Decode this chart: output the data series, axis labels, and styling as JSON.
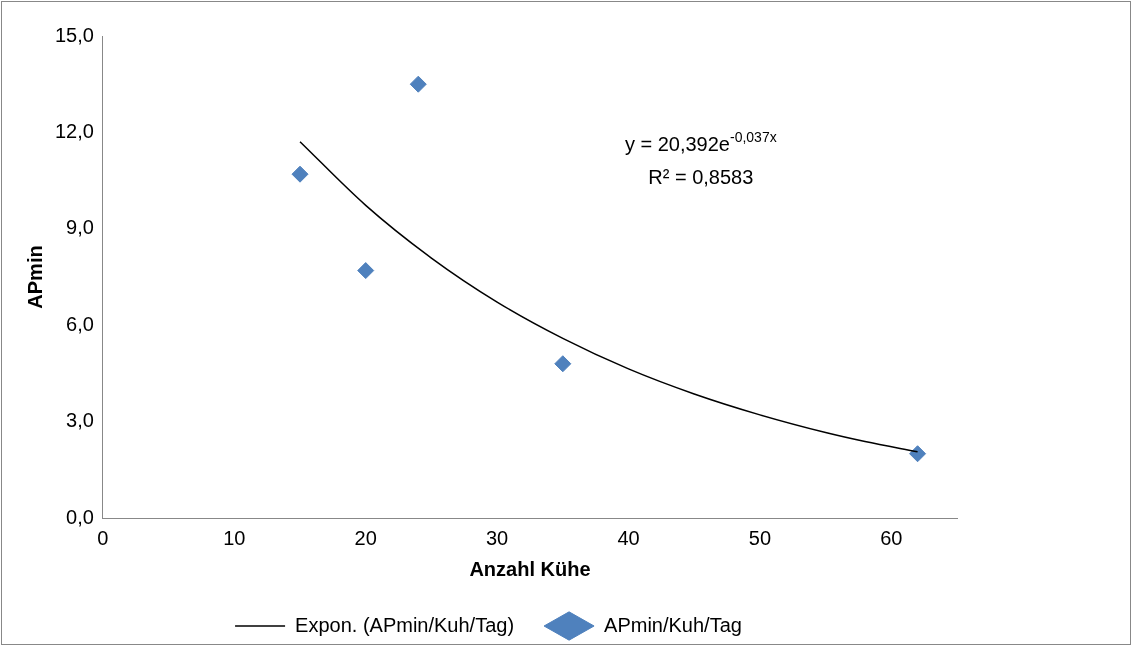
{
  "chart_data": {
    "type": "scatter",
    "xlabel": "Anzahl Kühe",
    "ylabel": "APmin",
    "xlim": [
      0,
      65
    ],
    "xticks": [
      0,
      10,
      20,
      30,
      40,
      50,
      60
    ],
    "ylim": [
      0,
      15
    ],
    "yticks": [
      {
        "value": 0,
        "label": "0,0"
      },
      {
        "value": 3,
        "label": "3,0"
      },
      {
        "value": 6,
        "label": "6,0"
      },
      {
        "value": 9,
        "label": "9,0"
      },
      {
        "value": 12,
        "label": "12,0"
      },
      {
        "value": 15,
        "label": "15,0"
      }
    ],
    "legend": "bottom",
    "series": [
      {
        "name": "APmin/Kuh/Tag",
        "color": "#4f81bd",
        "marker": "diamond",
        "x": [
          15,
          20,
          24,
          35,
          62
        ],
        "values": [
          10.7,
          7.7,
          13.5,
          4.8,
          2.0
        ]
      },
      {
        "type": "line",
        "name": "Expon. (APmin/Kuh/Tag)",
        "color": "#000000",
        "marker": "none",
        "x": [
          15,
          20,
          25,
          30,
          35,
          40,
          45,
          50,
          55,
          58,
          62
        ],
        "values": [
          11.71,
          9.73,
          8.09,
          6.72,
          5.59,
          4.64,
          3.86,
          3.21,
          2.66,
          2.38,
          2.06
        ]
      }
    ],
    "annotations": [
      "y = 20,392e$^{-0,037x}$",
      "R² = 0,8583"
    ]
  }
}
